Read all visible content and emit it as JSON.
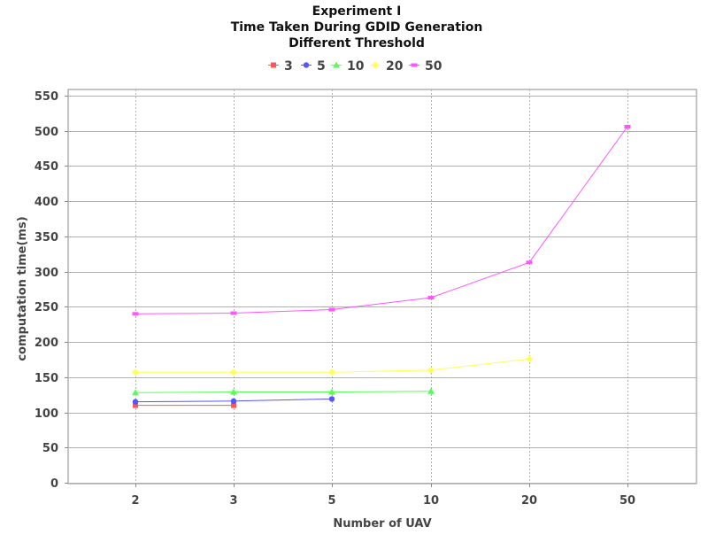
{
  "chart_data": {
    "type": "line",
    "title_lines": [
      "Experiment I",
      "Time Taken During GDID Generation",
      "Different Threshold"
    ],
    "xlabel": "Number of UAV",
    "ylabel": "computation time(ms)",
    "categories": [
      "2",
      "3",
      "5",
      "10",
      "20",
      "50"
    ],
    "ylim": [
      0,
      550
    ],
    "yticks": [
      0,
      50,
      100,
      150,
      200,
      250,
      300,
      350,
      400,
      450,
      500,
      550
    ],
    "grid": true,
    "legend_position": "top-center",
    "series": [
      {
        "name": "3",
        "color": "#ff5555",
        "marker": "square",
        "values": [
          110,
          110,
          null,
          null,
          null,
          null
        ]
      },
      {
        "name": "5",
        "color": "#5555ff",
        "marker": "circle",
        "values": [
          115,
          116,
          119,
          null,
          null,
          null
        ]
      },
      {
        "name": "10",
        "color": "#55ff55",
        "marker": "triangle",
        "values": [
          128,
          129,
          129,
          130,
          null,
          null
        ]
      },
      {
        "name": "20",
        "color": "#ffff55",
        "marker": "diamond",
        "values": [
          157,
          157,
          157,
          160,
          176,
          null
        ]
      },
      {
        "name": "50",
        "color": "#ff55ff",
        "marker": "rect",
        "values": [
          240,
          241,
          246,
          263,
          313,
          506
        ]
      }
    ]
  }
}
